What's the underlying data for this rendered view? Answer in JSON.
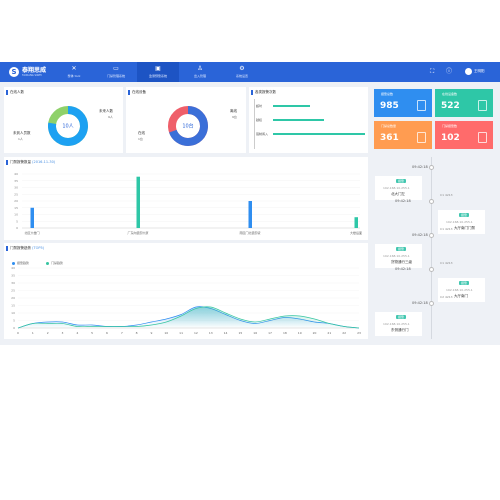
{
  "header": {
    "brand": "泰翔思威",
    "brand_sub": "TAIXIANG SIWEI",
    "nav": [
      {
        "label": "整体 tool",
        "icon": "tools-icon"
      },
      {
        "label": "门禁管理系统",
        "icon": "door-icon"
      },
      {
        "label": "监测预警系统",
        "icon": "monitor-icon"
      },
      {
        "label": "出入管理",
        "icon": "person-icon"
      },
      {
        "label": "系统设置",
        "icon": "gear-icon"
      }
    ],
    "user": "王明阳"
  },
  "cards": {
    "online": {
      "title": "在线人数",
      "center": "10人",
      "label_a": "未来人数",
      "value_a": "9人",
      "label_b": "未到人员数",
      "value_b": "1人"
    },
    "device": {
      "title": "在线设备",
      "center": "10台",
      "label_a": "离线",
      "value_a": "9台",
      "label_b": "在线",
      "value_b": "1台"
    },
    "alarm": {
      "title": "各类报警次数",
      "rows": [
        {
          "label": "超时",
          "value": 0.4
        },
        {
          "label": "越权",
          "value": 0.55
        },
        {
          "label": "强制闯入",
          "value": 1.0
        }
      ]
    }
  },
  "stats": [
    {
      "label": "报警总数",
      "value": "985",
      "color": "#2f8ef0"
    },
    {
      "label": "在线设备数",
      "value": "522",
      "color": "#2ec7a7"
    },
    {
      "label": "门禁总数量",
      "value": "361",
      "color": "#ff9c51"
    },
    {
      "label": "门禁报警数",
      "value": "102",
      "color": "#ff6b6b"
    }
  ],
  "door_chart": {
    "title": "门禁报警数量",
    "subtitle": "(2016-11-30)",
    "chart_data": {
      "type": "bar",
      "categories": [
        "北区大楼门",
        "厂东向装卸大厦",
        "南区门北装卸货",
        "大楼后面"
      ],
      "values": [
        15,
        38,
        20,
        8
      ],
      "ylim": [
        0,
        40
      ],
      "y_ticks": [
        "0",
        "5",
        "10",
        "15",
        "20",
        "25",
        "30",
        "35",
        "40"
      ],
      "colors": [
        "#2f8ef0",
        "#2ec7a7",
        "#2f8ef0",
        "#2ec7a7"
      ]
    }
  },
  "line_chart": {
    "title": "门禁报警趋势",
    "subtitle": "(TOP5)",
    "chart_data": {
      "type": "area",
      "x": [
        "0",
        "1",
        "2",
        "3",
        "4",
        "5",
        "6",
        "7",
        "8",
        "9",
        "10",
        "11",
        "12",
        "13",
        "14",
        "15",
        "16",
        "17",
        "18",
        "19",
        "20",
        "21",
        "22",
        "23"
      ],
      "series": [
        {
          "name": "报警趋势",
          "color": "#2f8ef0",
          "values": [
            0,
            3,
            4,
            4,
            2,
            2,
            1,
            1,
            2,
            4,
            6,
            9,
            14,
            13,
            9,
            5,
            3,
            5,
            7,
            6,
            4,
            3,
            1,
            0
          ]
        },
        {
          "name": "门禁趋势",
          "color": "#36c5a1",
          "values": [
            0,
            3,
            3,
            3,
            1,
            1,
            1,
            1,
            1,
            2,
            4,
            8,
            13,
            14,
            10,
            6,
            4,
            6,
            8,
            8,
            6,
            3,
            1,
            0
          ]
        }
      ],
      "ylim": [
        0,
        40
      ],
      "y_ticks": [
        "0",
        "5",
        "10",
        "15",
        "20",
        "25",
        "30",
        "35",
        "40"
      ]
    }
  },
  "timeline": [
    {
      "side": "left",
      "time": "09:42:18",
      "ip": "192.168.10.255.1",
      "desc": "北大门左"
    },
    {
      "side": "right",
      "time": "09:42:18",
      "ip": "192.168.10.255.1",
      "desc": "大厅南门门禁"
    },
    {
      "side": "left",
      "time": "09:42:18",
      "ip": "192.168.10.255.1",
      "desc": "货物通行三级"
    },
    {
      "side": "right",
      "time": "09:42:18",
      "ip": "192.168.10.255.1",
      "desc": "大厅南门"
    },
    {
      "side": "left",
      "time": "09:42:18",
      "ip": "192.168.10.255.1",
      "desc": "东侧通行门"
    }
  ],
  "timeline_badge": "报警",
  "timeline_right_labels": [
    "C1 4213",
    "C1 4213",
    "C1 4213",
    "C2 4213"
  ]
}
